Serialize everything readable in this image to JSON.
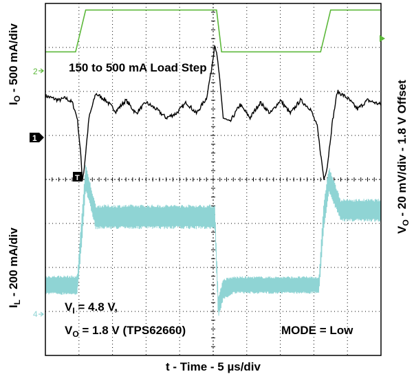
{
  "chart_data": {
    "type": "line",
    "axes": {
      "x_label": "t - Time - 5 µs/div",
      "x_divisions": 10,
      "y_divisions": 8,
      "y_left_top": {
        "main": "I",
        "sub": "O",
        "rest": " - 500 mA/div"
      },
      "y_left_bottom": {
        "main": "I",
        "sub": "L",
        "rest": " - 200 mA/div"
      },
      "y_right": {
        "main": "V",
        "sub": "O",
        "rest": " - 20 mV/div - 1.8 V Offset"
      }
    },
    "grid": true,
    "annotations": {
      "load_step": "150 to 500 mA Load Step",
      "vi": {
        "main": "V",
        "sub": "I",
        "rest": " = 4.8 V,"
      },
      "vo": {
        "main": "V",
        "sub": "O",
        "rest": " = 1.8 V (TPS62660)"
      },
      "mode": "MODE = Low"
    },
    "markers": {
      "ch2": "2",
      "ch1": "1",
      "ch4": "4",
      "trigger": "T"
    },
    "series": [
      {
        "channel": "2",
        "color": "#5cb83a",
        "x_div": [
          0,
          0.9,
          1.2,
          5.1,
          5.25,
          8.2,
          8.5,
          10
        ],
        "y_div": [
          6.9,
          6.9,
          7.85,
          7.85,
          6.9,
          6.9,
          7.85,
          7.85
        ]
      },
      {
        "channel": "1",
        "color": "#000000",
        "x_div": [
          0,
          0.2,
          0.4,
          0.6,
          0.8,
          0.95,
          1.05,
          1.1,
          1.15,
          1.3,
          1.5,
          1.8,
          2.1,
          2.4,
          2.7,
          3.0,
          3.3,
          3.6,
          3.9,
          4.2,
          4.5,
          4.8,
          4.95,
          5.05,
          5.15,
          5.3,
          5.5,
          5.8,
          6.1,
          6.4,
          6.7,
          7.0,
          7.3,
          7.6,
          7.9,
          8.1,
          8.2,
          8.3,
          8.4,
          8.55,
          8.7,
          9.0,
          9.3,
          9.6,
          10
        ],
        "y_div": [
          5.9,
          5.85,
          5.8,
          5.85,
          5.75,
          5.4,
          4.6,
          4.0,
          4.2,
          5.4,
          5.95,
          5.8,
          5.55,
          5.8,
          5.5,
          5.75,
          5.6,
          5.4,
          5.5,
          5.75,
          5.5,
          5.85,
          6.5,
          7.1,
          6.6,
          5.4,
          5.3,
          5.7,
          5.4,
          5.75,
          5.5,
          5.8,
          5.5,
          5.8,
          5.6,
          5.2,
          4.6,
          4.0,
          4.3,
          5.3,
          6.0,
          5.85,
          5.6,
          5.8,
          5.7
        ]
      },
      {
        "channel": "4",
        "color": "#8fd4d4",
        "x_div": [
          0,
          0.95,
          1.1,
          1.2,
          1.5,
          5.05,
          5.15,
          5.3,
          5.6,
          8.15,
          8.3,
          8.45,
          8.8,
          10
        ],
        "y_div": [
          1.6,
          1.6,
          3.0,
          4.05,
          3.15,
          3.15,
          1.1,
          1.5,
          1.6,
          1.6,
          3.2,
          4.0,
          3.3,
          3.3
        ],
        "ripple_div": [
          0.22,
          0.22,
          0.4,
          0.3,
          0.28,
          0.28,
          0.25,
          0.25,
          0.2,
          0.2,
          0.35,
          0.3,
          0.26,
          0.26
        ]
      }
    ]
  }
}
